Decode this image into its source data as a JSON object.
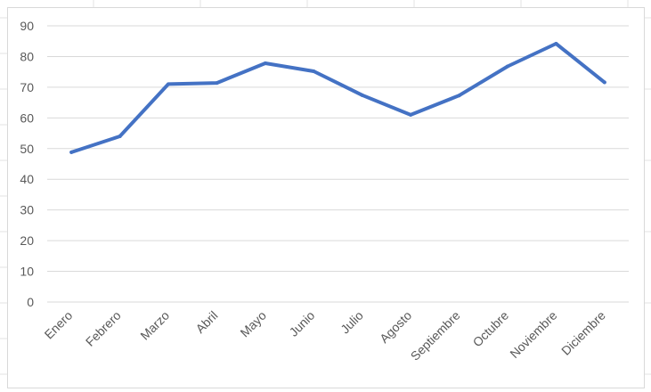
{
  "chart_data": {
    "type": "line",
    "title": "",
    "xlabel": "",
    "ylabel": "",
    "categories": [
      "Enero",
      "Febrero",
      "Marzo",
      "Abril",
      "Mayo",
      "Junio",
      "Julio",
      "Agosto",
      "Septiembre",
      "Octubre",
      "Noviembre",
      "Diciembre"
    ],
    "series": [
      {
        "values": [
          48.8,
          54,
          71,
          71.4,
          77.8,
          75.2,
          67.4,
          61,
          67.3,
          76.8,
          84.2,
          71.6
        ]
      }
    ],
    "ylim": [
      0,
      90
    ],
    "yticks": [
      0,
      10,
      20,
      30,
      40,
      50,
      60,
      70,
      80,
      90
    ],
    "grid": true,
    "legend": "none",
    "colors": {
      "line": "#4472C4",
      "grid": "#d9d9d9",
      "text": "#595959"
    }
  }
}
